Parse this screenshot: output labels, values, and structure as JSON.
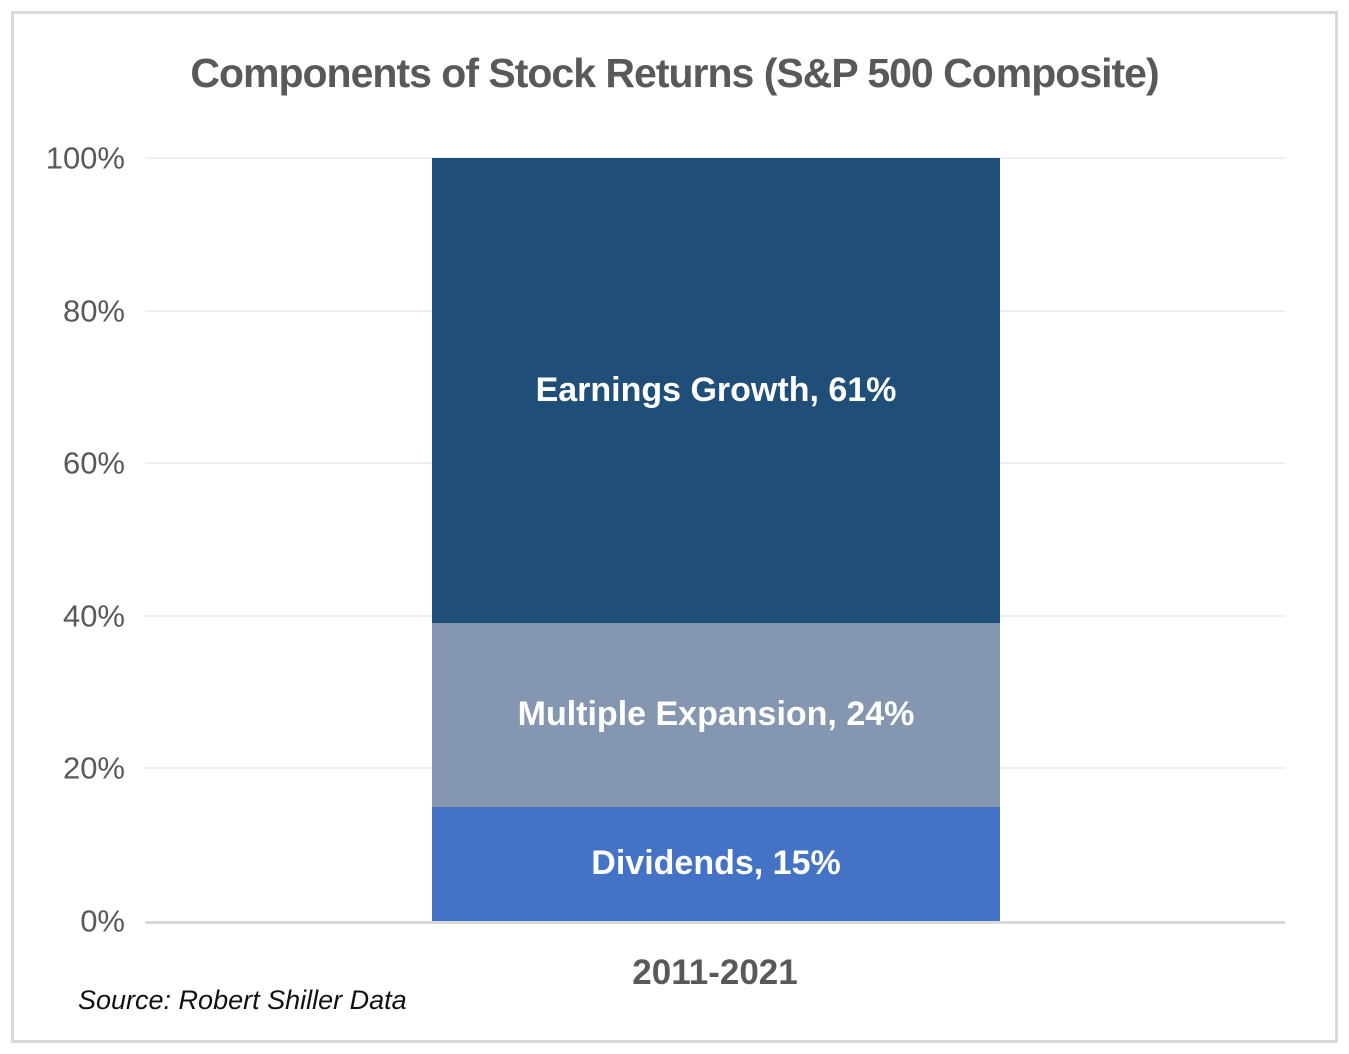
{
  "chart_data": {
    "type": "bar",
    "stacked": true,
    "title": "Components of Stock Returns (S&P 500 Composite)",
    "categories": [
      "2011-2021"
    ],
    "series": [
      {
        "name": "Dividends",
        "value": 15,
        "label": "Dividends, 15%",
        "color": "#4472C4"
      },
      {
        "name": "Multiple Expansion",
        "value": 24,
        "label": "Multiple Expansion, 24%",
        "color": "#8496B0"
      },
      {
        "name": "Earnings Growth",
        "value": 61,
        "label": "Earnings Growth, 61%",
        "color": "#1F4E79"
      }
    ],
    "ylabel": "",
    "xlabel": "",
    "ylim": [
      0,
      100
    ],
    "yticks": [
      0,
      20,
      40,
      60,
      80,
      100
    ],
    "ytick_labels": [
      "0%",
      "20%",
      "40%",
      "60%",
      "80%",
      "100%"
    ],
    "grid": true,
    "legend_position": "none",
    "source_note": "Source: Robert Shiller Data"
  },
  "style": {
    "text_color": "#595959",
    "gridline_color": "#EFEFEF",
    "axis_line_color": "#D9D9D9",
    "frame_border_color": "#D9D9D9",
    "background_color": "#FFFFFF",
    "bar_label_color": "#FFFFFF"
  }
}
